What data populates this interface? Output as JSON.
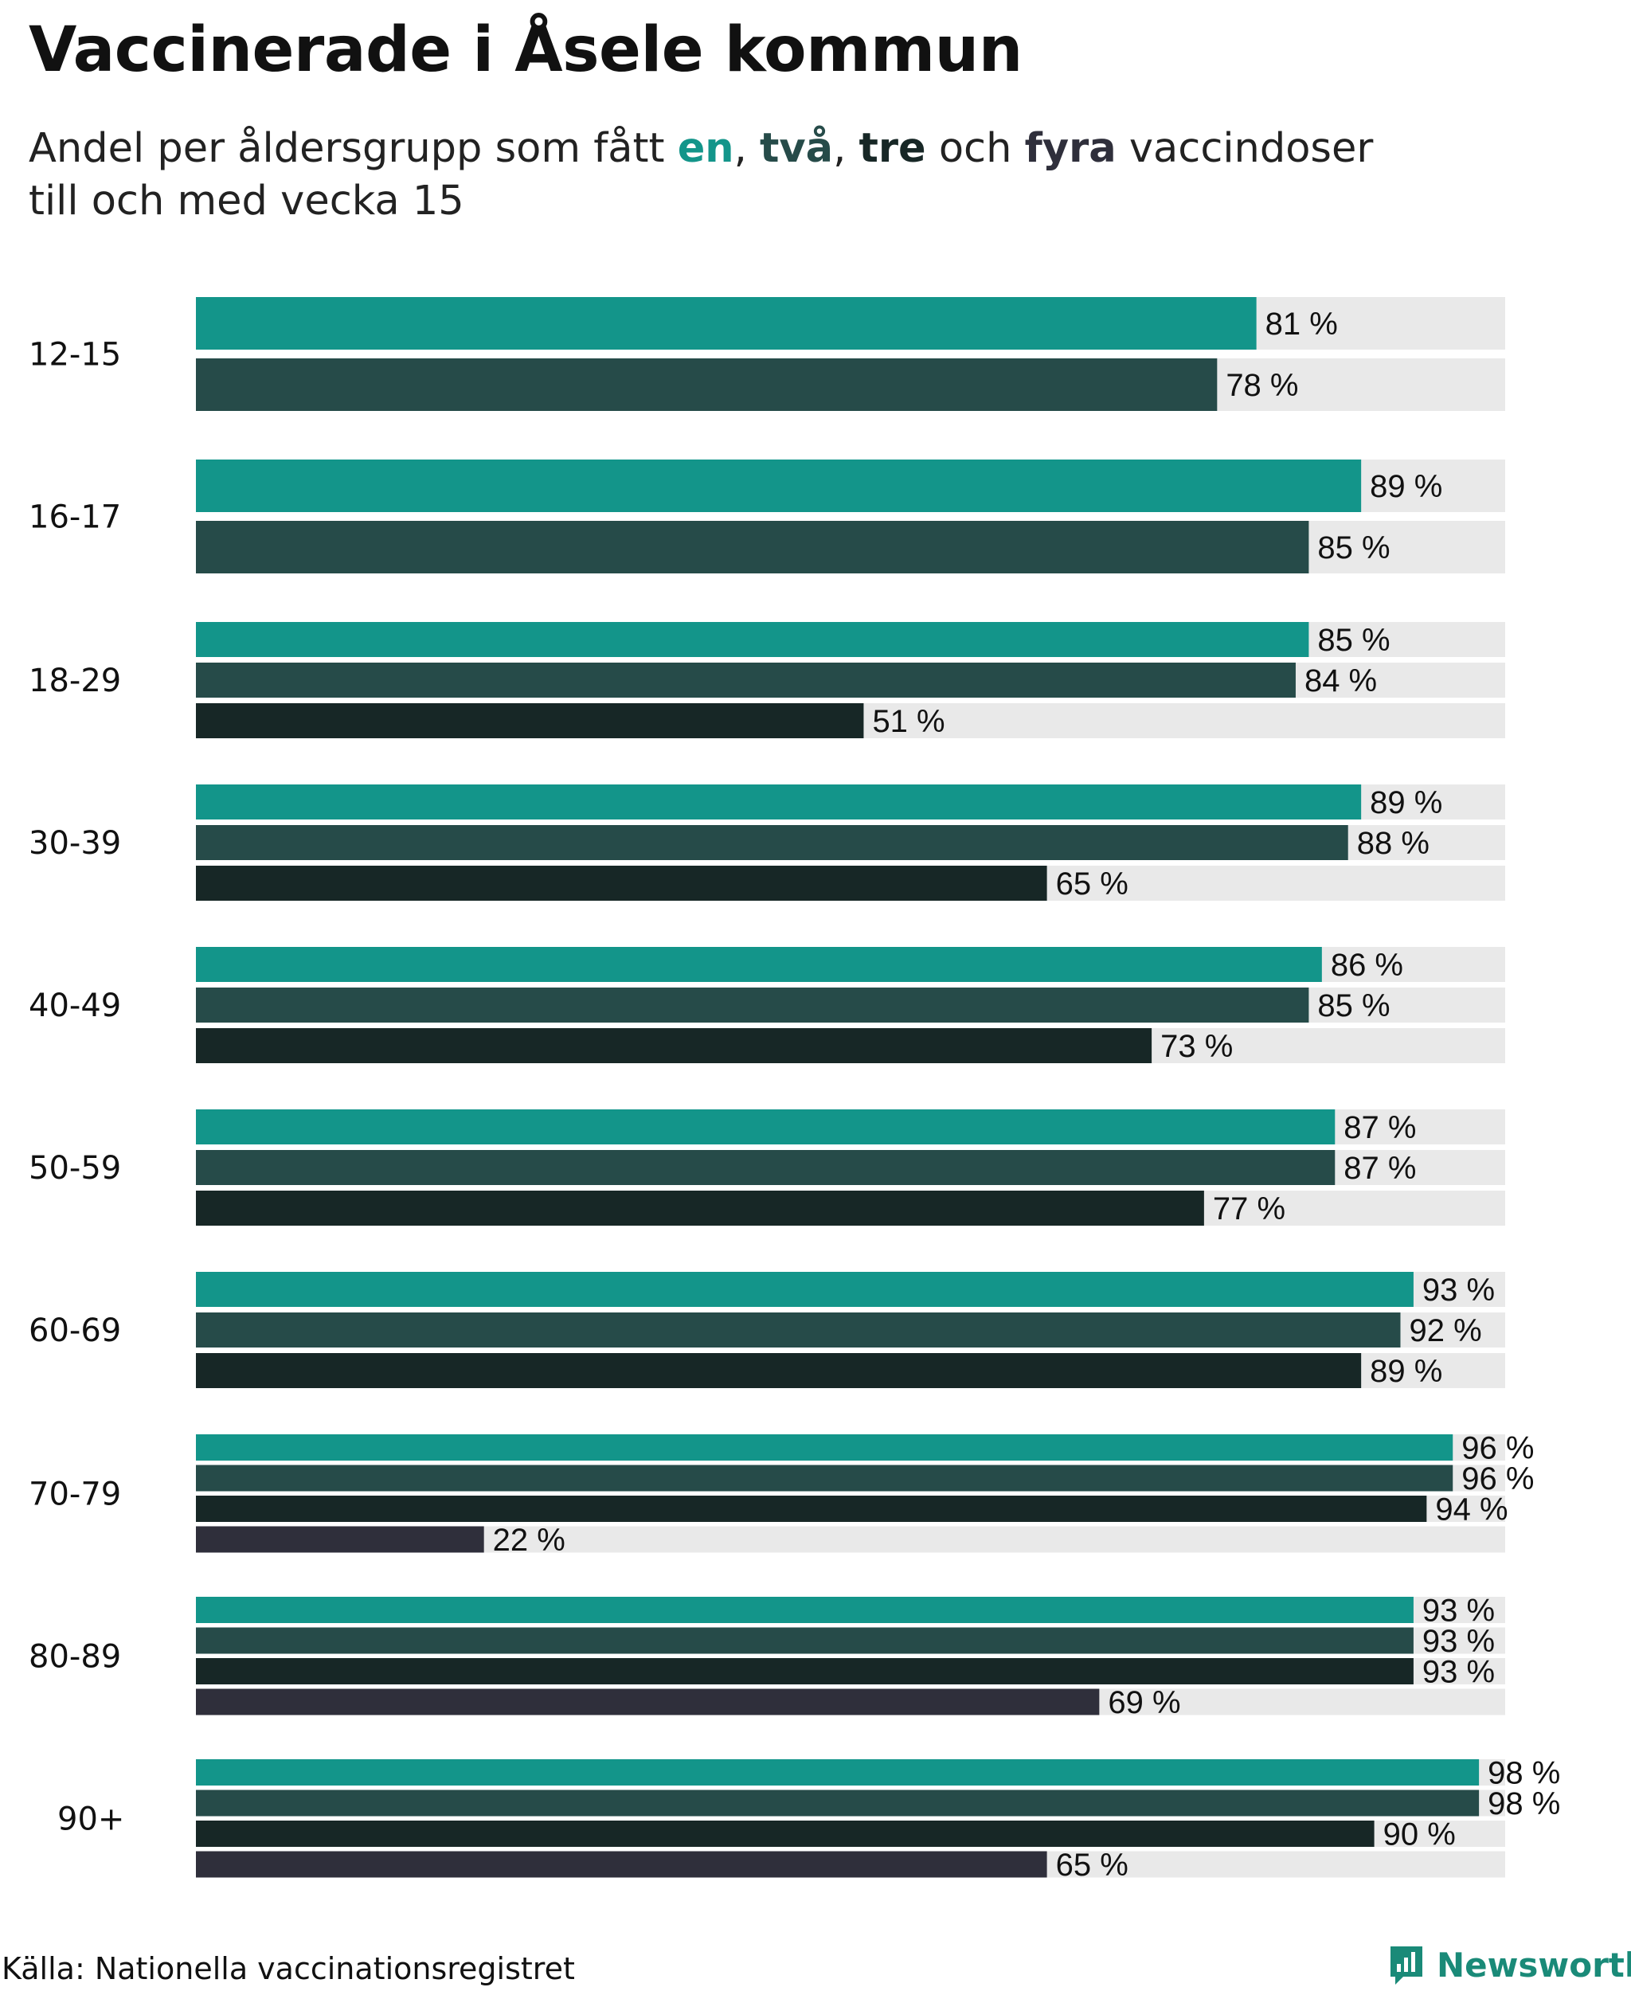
{
  "header": {
    "title": "Vaccinerade i Åsele kommun",
    "subtitle_prefix": "Andel per åldersgrupp som fått ",
    "subtitle_en": "en",
    "subtitle_comma1": ", ",
    "subtitle_tva": "två",
    "subtitle_comma2": ", ",
    "subtitle_tre": "tre",
    "subtitle_och": " och ",
    "subtitle_fyra": "fyra",
    "subtitle_suffix": " vaccindoser",
    "subtitle_line2": "till och med vecka 15"
  },
  "colors": {
    "dose_1": "#13958a",
    "dose_2": "#264b49",
    "dose_3": "#172726",
    "dose_4": "#2f2f3b",
    "track": "#e9e9e9"
  },
  "chart_data": {
    "type": "bar",
    "orientation": "horizontal",
    "title": "Vaccinerade i Åsele kommun",
    "subtitle": "Andel per åldersgrupp som fått en, två, tre och fyra vaccindoser till och med vecka 15",
    "xlim": [
      0,
      100
    ],
    "value_suffix": " %",
    "series_names": [
      "en",
      "två",
      "tre",
      "fyra"
    ],
    "groups": [
      {
        "label": "12-15",
        "values": [
          81,
          78
        ]
      },
      {
        "label": "16-17",
        "values": [
          89,
          85
        ]
      },
      {
        "label": "18-29",
        "values": [
          85,
          84,
          51
        ]
      },
      {
        "label": "30-39",
        "values": [
          89,
          88,
          65
        ]
      },
      {
        "label": "40-49",
        "values": [
          86,
          85,
          73
        ]
      },
      {
        "label": "50-59",
        "values": [
          87,
          87,
          77
        ]
      },
      {
        "label": "60-69",
        "values": [
          93,
          92,
          89
        ]
      },
      {
        "label": "70-79",
        "values": [
          96,
          96,
          94,
          22
        ]
      },
      {
        "label": "80-89",
        "values": [
          93,
          93,
          93,
          69
        ]
      },
      {
        "label": "90+",
        "values": [
          98,
          98,
          90,
          65
        ]
      }
    ]
  },
  "footer": {
    "source": "Källa: Nationella vaccinationsregistret",
    "brand": "Newsworthy",
    "brand_icon": "newsworthy-logo-icon"
  }
}
